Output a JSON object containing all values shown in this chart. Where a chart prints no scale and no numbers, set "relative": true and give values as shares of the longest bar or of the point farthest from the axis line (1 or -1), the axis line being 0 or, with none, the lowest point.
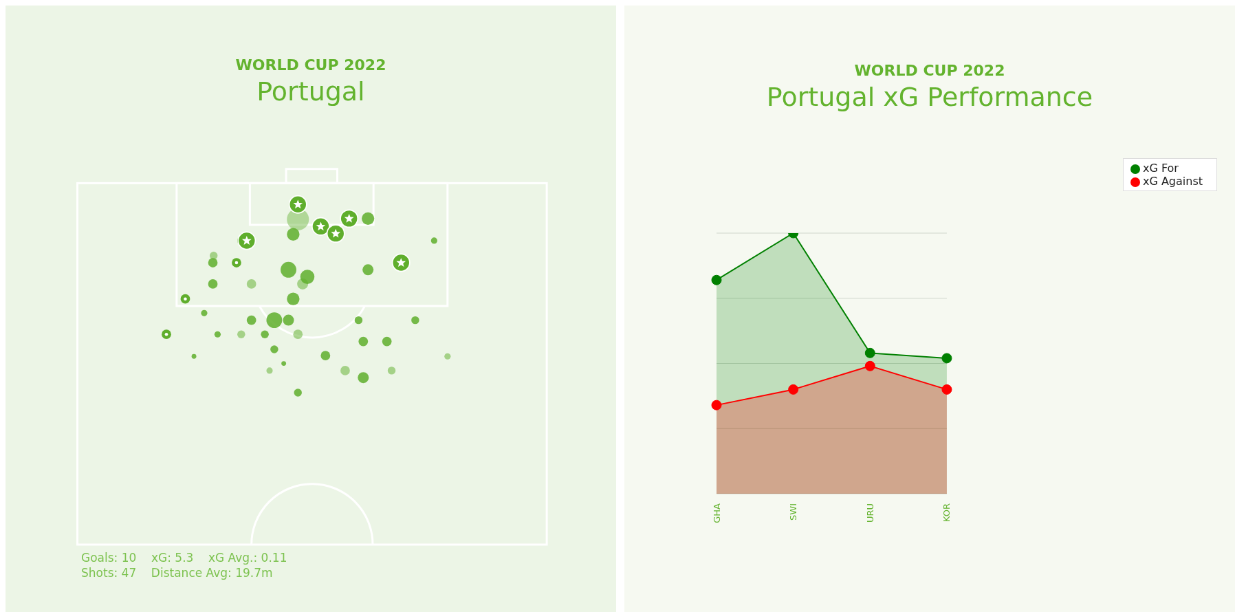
{
  "chart_data": [
    {
      "type": "other",
      "subtitle": "WORLD CUP 2022",
      "title": "Portugal",
      "annotations": [
        "Goals: 10    xG: 5.3    xG Avg.: 0.11",
        "Shots: 47    Distance Avg: 19.7m"
      ]
    },
    {
      "type": "area",
      "subtitle": "WORLD CUP 2022",
      "title": "Portugal xG Performance",
      "relative": true,
      "categories": [
        "GHA",
        "SWI",
        "URU",
        "KOR"
      ],
      "series": [
        {
          "name": "xG For",
          "color": "#008000",
          "values": [
            0.82,
            1,
            0.54,
            0.52
          ]
        },
        {
          "name": "xG Against",
          "color": "#ff0000",
          "values": [
            0.34,
            0.4,
            0.49,
            0.4
          ]
        }
      ],
      "grid": "y",
      "legend": "top right",
      "marker": "circle",
      "line_style": "solid"
    }
  ]
}
